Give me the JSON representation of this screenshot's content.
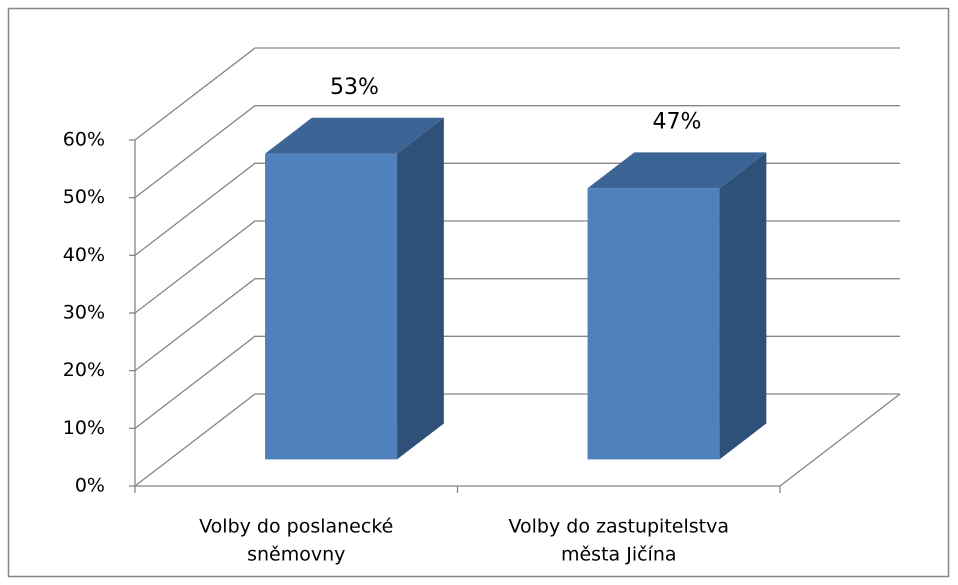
{
  "chart_data": {
    "type": "bar3d",
    "categories": [
      [
        "Volby do poslanecké",
        "sněmovny"
      ],
      [
        "Volby do zastupitelstva",
        "města Jičína"
      ]
    ],
    "values": [
      53,
      47
    ],
    "value_labels": [
      "53%",
      "47%"
    ],
    "color": "#4f81bd",
    "ylim": [
      0,
      60
    ],
    "yticks": [
      {
        "value": 0,
        "label": "0%"
      },
      {
        "value": 10,
        "label": "10%"
      },
      {
        "value": 20,
        "label": "20%"
      },
      {
        "value": 30,
        "label": "30%"
      },
      {
        "value": 40,
        "label": "40%"
      },
      {
        "value": 50,
        "label": "50%"
      },
      {
        "value": 60,
        "label": "60%"
      }
    ],
    "grid": true
  }
}
